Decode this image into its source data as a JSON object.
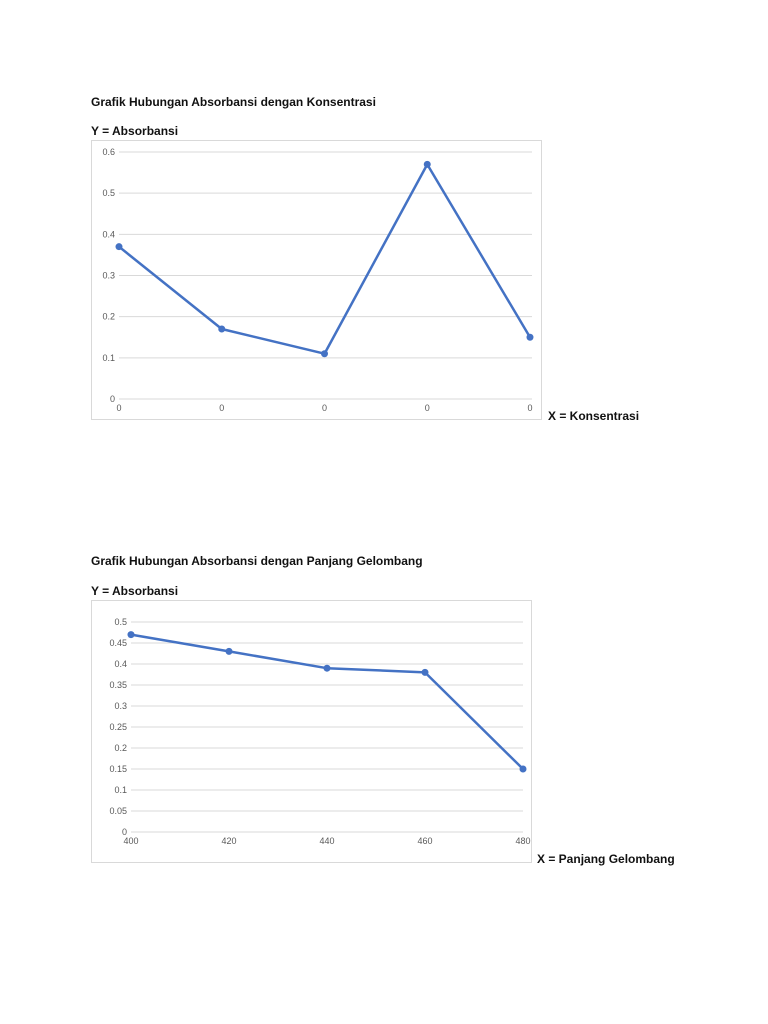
{
  "chart_data": [
    {
      "type": "line",
      "title": "Grafik Hubungan Absorbansi dengan Konsentrasi",
      "ylabel": "Y = Absorbansi",
      "xlabel": "X = Konsentrasi",
      "categories": [
        "0",
        "0",
        "0",
        "0",
        "0"
      ],
      "series": [
        {
          "values": [
            0.37,
            0.17,
            0.11,
            0.57,
            0.15
          ]
        }
      ],
      "yticks": [
        "0",
        "0.1",
        "0.2",
        "0.3",
        "0.4",
        "0.5",
        "0.6"
      ],
      "ylim": [
        0,
        0.6
      ],
      "grid": true,
      "color": "#4472C4"
    },
    {
      "type": "line",
      "title": "Grafik Hubungan Absorbansi dengan Panjang Gelombang",
      "ylabel": "Y = Absorbansi",
      "xlabel": "X = Panjang Gelombang",
      "categories": [
        "400",
        "420",
        "440",
        "460",
        "480"
      ],
      "series": [
        {
          "values": [
            0.47,
            0.43,
            0.39,
            0.38,
            0.15
          ]
        }
      ],
      "yticks": [
        "0",
        "0.05",
        "0.1",
        "0.15",
        "0.2",
        "0.25",
        "0.3",
        "0.35",
        "0.4",
        "0.45",
        "0.5"
      ],
      "ylim": [
        0,
        0.5
      ],
      "grid": true,
      "color": "#4472C4"
    }
  ]
}
